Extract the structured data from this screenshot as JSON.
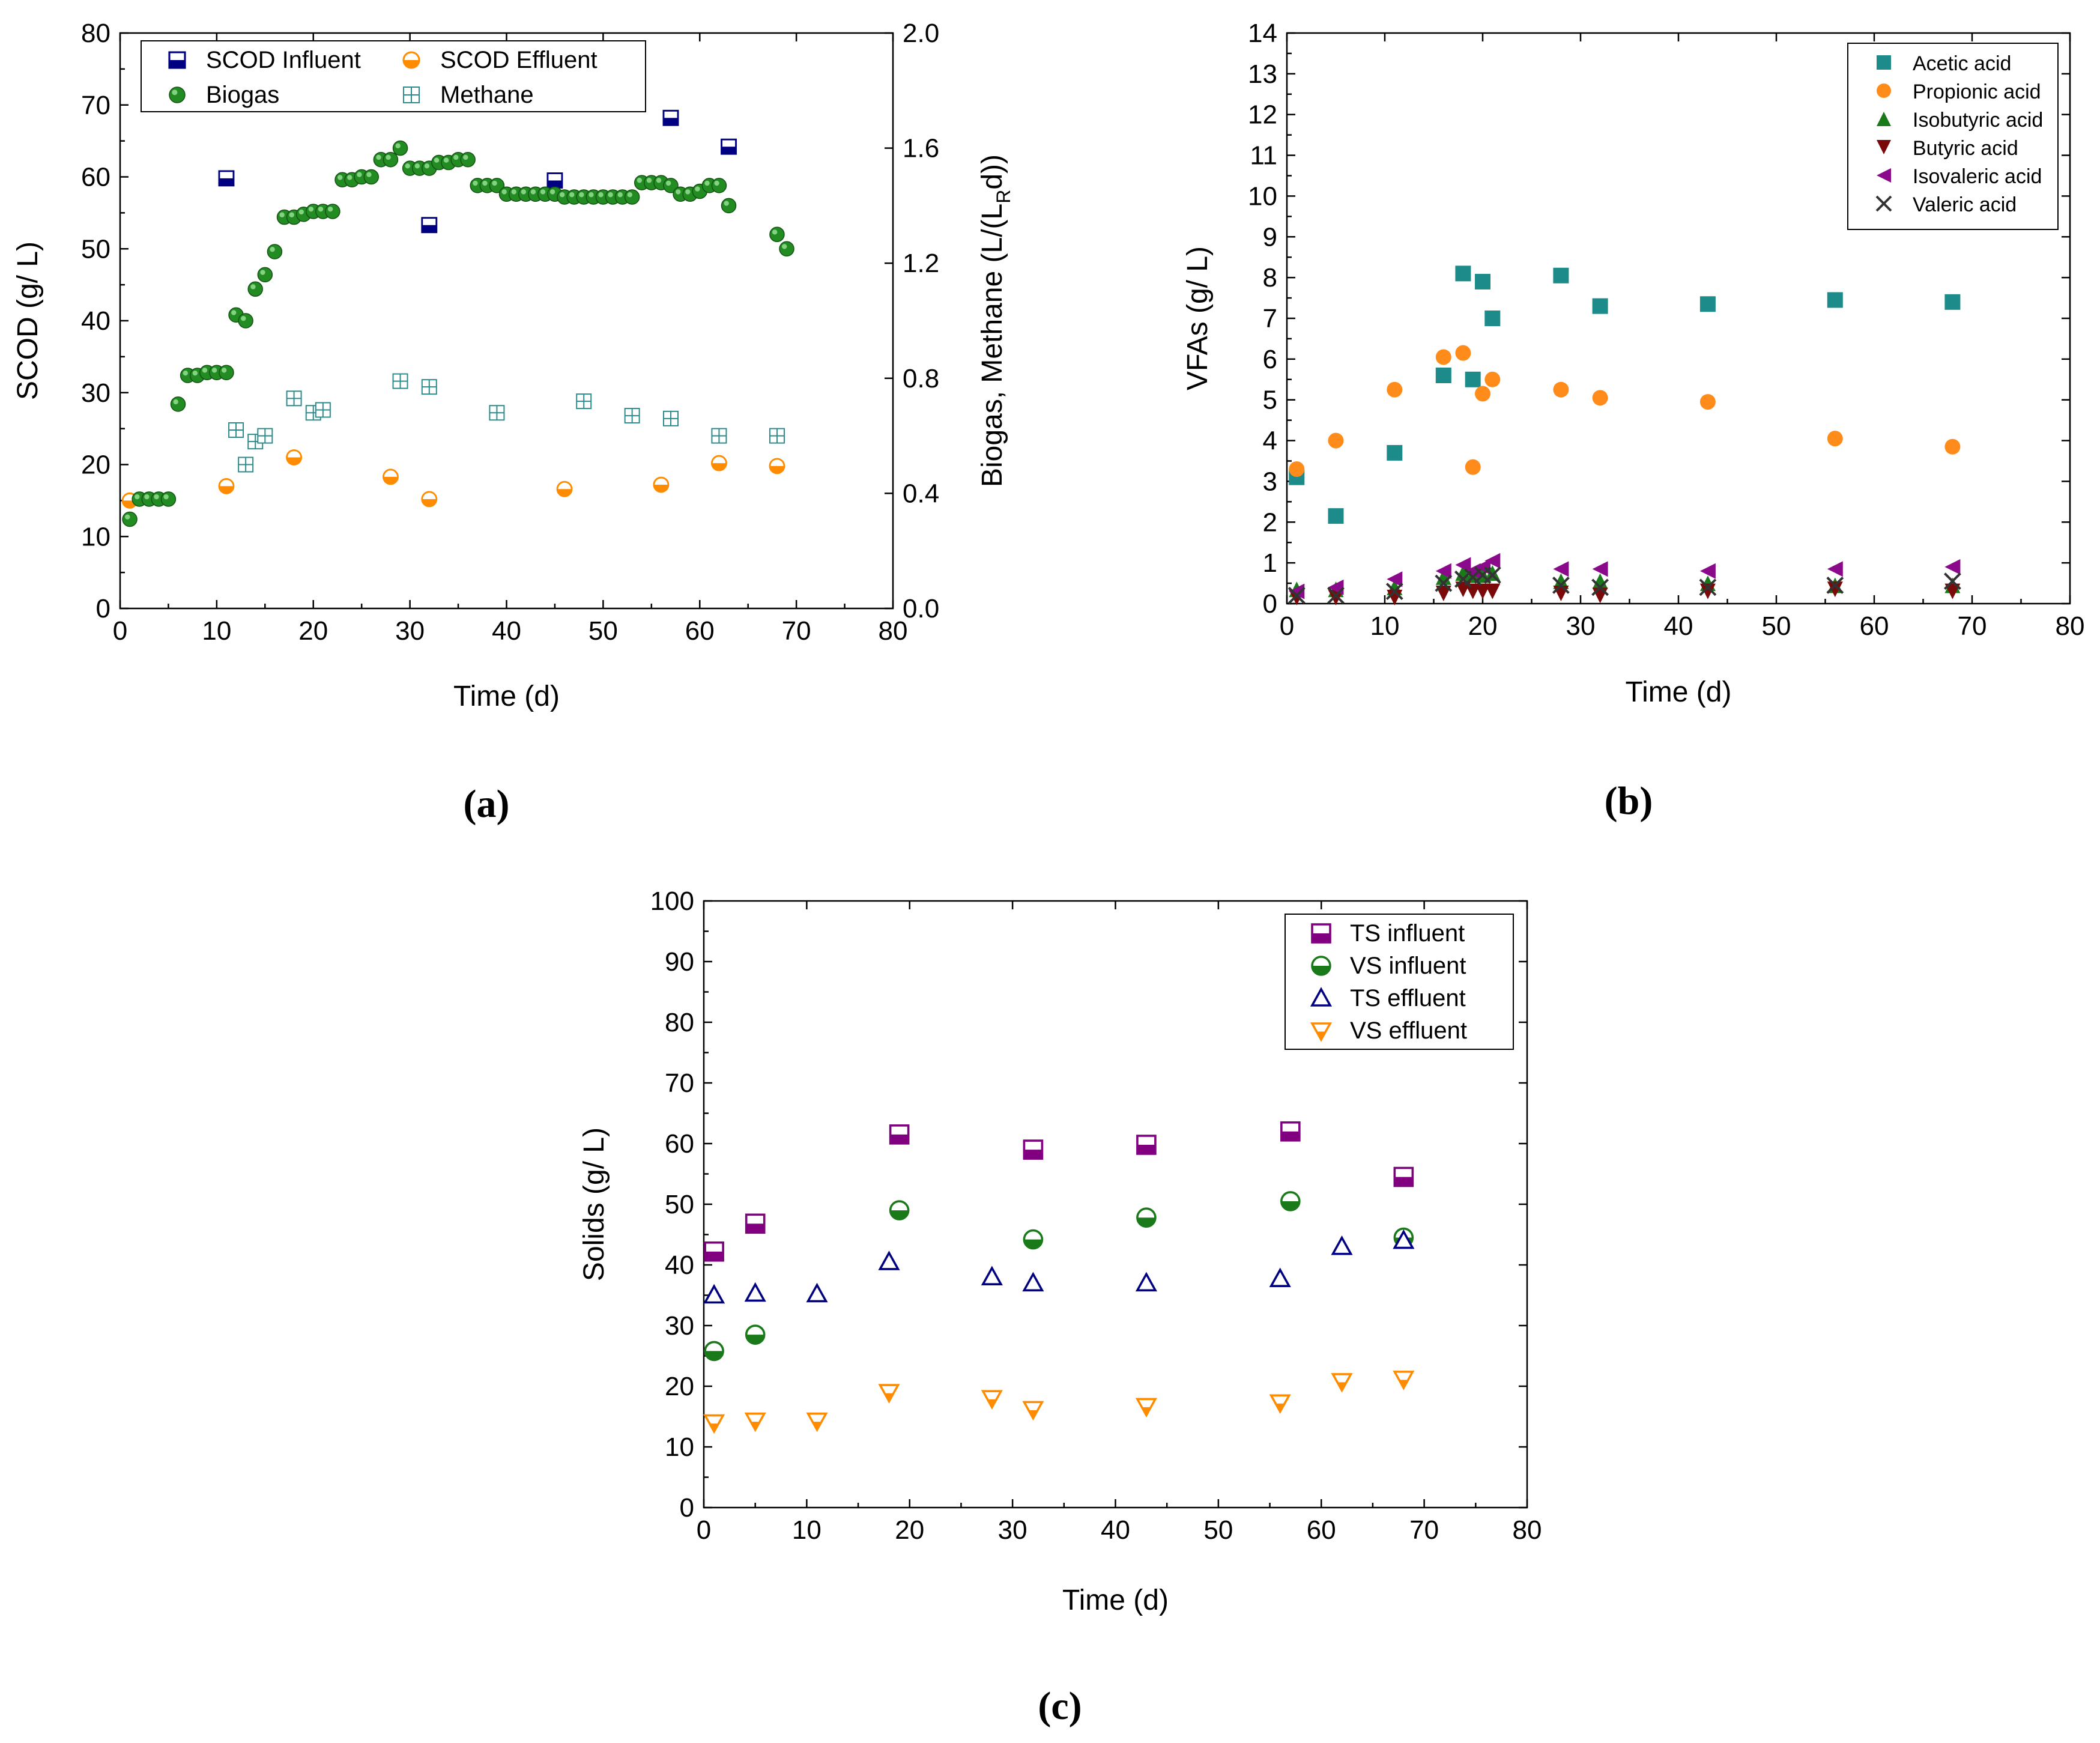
{
  "chart_data": [
    {
      "id": "a",
      "type": "scatter",
      "panel_label": "(a)",
      "xlabel": "Time (d)",
      "ylabel": "SCOD (g/ L)",
      "y2label": "Biogas, Methane (L/(L",
      "y2label_sub": "R",
      "y2label_end": "d))",
      "xlim": [
        0,
        80
      ],
      "ylim": [
        0,
        80
      ],
      "y2lim": [
        0,
        2.0
      ],
      "xticks": [
        "0",
        "10",
        "20",
        "30",
        "40",
        "50",
        "60",
        "70",
        "80"
      ],
      "yticks": [
        "0",
        "10",
        "20",
        "30",
        "40",
        "50",
        "60",
        "70",
        "80"
      ],
      "y2ticks": [
        "0.0",
        "0.4",
        "0.8",
        "1.2",
        "1.6",
        "2.0"
      ],
      "legend_position": "top",
      "series": [
        {
          "name": "SCOD Influent",
          "axis": "left",
          "marker": "half-square",
          "color": "#000080",
          "x": [
            11,
            32,
            45,
            57,
            63
          ],
          "y": [
            59.8,
            53.3,
            59.5,
            68.2,
            64.2
          ]
        },
        {
          "name": "SCOD Effluent",
          "axis": "left",
          "marker": "half-circle",
          "color": "#FF8C00",
          "x": [
            1,
            11,
            18,
            28,
            32,
            46,
            56,
            62,
            68
          ],
          "y": [
            15.0,
            17.0,
            21.0,
            18.3,
            15.2,
            16.6,
            17.2,
            20.2,
            19.8
          ]
        },
        {
          "name": "Biogas",
          "axis": "right",
          "marker": "ball",
          "color": "#228B22",
          "x": [
            1,
            2,
            3,
            4,
            5,
            6,
            7,
            8,
            9,
            10,
            11,
            12,
            13,
            14,
            15,
            16,
            17,
            18,
            19,
            20,
            21,
            22,
            23,
            24,
            25,
            26,
            27,
            28,
            29,
            30,
            31,
            32,
            33,
            34,
            35,
            36,
            37,
            38,
            39,
            40,
            41,
            42,
            43,
            44,
            45,
            46,
            47,
            48,
            49,
            50,
            51,
            52,
            53,
            54,
            55,
            56,
            57,
            58,
            59,
            60,
            61,
            62,
            63,
            68,
            69
          ],
          "y": [
            0.31,
            0.38,
            0.38,
            0.38,
            0.38,
            0.71,
            0.81,
            0.81,
            0.82,
            0.82,
            0.82,
            1.02,
            1.0,
            1.11,
            1.16,
            1.24,
            1.36,
            1.36,
            1.37,
            1.38,
            1.38,
            1.38,
            1.49,
            1.49,
            1.5,
            1.5,
            1.56,
            1.56,
            1.6,
            1.53,
            1.53,
            1.53,
            1.55,
            1.55,
            1.56,
            1.56,
            1.47,
            1.47,
            1.47,
            1.44,
            1.44,
            1.44,
            1.44,
            1.44,
            1.44,
            1.43,
            1.43,
            1.43,
            1.43,
            1.43,
            1.43,
            1.43,
            1.43,
            1.48,
            1.48,
            1.48,
            1.47,
            1.44,
            1.44,
            1.45,
            1.47,
            1.47,
            1.4,
            1.3,
            1.25
          ]
        },
        {
          "name": "Methane",
          "axis": "right",
          "marker": "grid-square",
          "color": "#2E8B8B",
          "x": [
            12,
            13,
            14,
            15,
            18,
            20,
            21,
            29,
            32,
            39,
            48,
            53,
            57,
            62,
            68
          ],
          "y": [
            0.62,
            0.5,
            0.58,
            0.6,
            0.73,
            0.68,
            0.69,
            0.79,
            0.77,
            0.68,
            0.72,
            0.67,
            0.66,
            0.6,
            0.6
          ]
        }
      ]
    },
    {
      "id": "b",
      "type": "scatter",
      "panel_label": "(b)",
      "xlabel": "Time (d)",
      "ylabel": "VFAs (g/ L)",
      "xlim": [
        0,
        80
      ],
      "ylim": [
        0,
        14
      ],
      "xticks": [
        "0",
        "10",
        "20",
        "30",
        "40",
        "50",
        "60",
        "70",
        "80"
      ],
      "yticks": [
        "0",
        "1",
        "2",
        "3",
        "4",
        "5",
        "6",
        "7",
        "8",
        "9",
        "10",
        "11",
        "12",
        "13",
        "14"
      ],
      "legend_position": "top-right",
      "series": [
        {
          "name": "Acetic acid",
          "marker": "square",
          "color": "#1E8B8B",
          "x": [
            1,
            5,
            11,
            16,
            18,
            19,
            20,
            21,
            28,
            32,
            43,
            56,
            68
          ],
          "y": [
            3.1,
            2.15,
            3.7,
            5.6,
            8.1,
            5.5,
            7.9,
            7.0,
            8.05,
            7.3,
            7.35,
            7.45,
            7.4
          ]
        },
        {
          "name": "Propionic acid",
          "marker": "circle",
          "color": "#FF8C1A",
          "x": [
            1,
            5,
            11,
            16,
            18,
            19,
            20,
            21,
            28,
            32,
            43,
            56,
            68
          ],
          "y": [
            3.3,
            4.0,
            5.25,
            6.05,
            6.15,
            3.35,
            5.15,
            5.5,
            5.25,
            5.05,
            4.95,
            4.05,
            3.85
          ]
        },
        {
          "name": "Isobutyric acid",
          "marker": "triangle-up",
          "color": "#1A7A1A",
          "x": [
            1,
            5,
            11,
            16,
            18,
            19,
            20,
            21,
            28,
            32,
            43,
            56,
            68
          ],
          "y": [
            0.35,
            0.35,
            0.4,
            0.65,
            0.75,
            0.7,
            0.7,
            0.75,
            0.55,
            0.55,
            0.5,
            0.45,
            0.45
          ]
        },
        {
          "name": "Butyric acid",
          "marker": "triangle-down",
          "color": "#7A0A0A",
          "x": [
            1,
            5,
            11,
            16,
            18,
            19,
            20,
            21,
            28,
            32,
            43,
            56,
            68
          ],
          "y": [
            0.15,
            0.15,
            0.15,
            0.25,
            0.35,
            0.3,
            0.3,
            0.3,
            0.25,
            0.2,
            0.3,
            0.35,
            0.3
          ]
        },
        {
          "name": "Isovaleric acid",
          "marker": "triangle-left",
          "color": "#8B0A8B",
          "x": [
            1,
            5,
            11,
            16,
            18,
            19,
            20,
            21,
            28,
            32,
            43,
            56,
            68
          ],
          "y": [
            0.3,
            0.4,
            0.6,
            0.8,
            0.95,
            0.8,
            0.9,
            1.05,
            0.85,
            0.85,
            0.8,
            0.85,
            0.9
          ]
        },
        {
          "name": "Valeric acid",
          "marker": "x",
          "color": "#333333",
          "x": [
            1,
            5,
            11,
            16,
            18,
            19,
            20,
            21,
            28,
            32,
            43,
            56,
            68
          ],
          "y": [
            0.2,
            0.2,
            0.3,
            0.5,
            0.6,
            0.65,
            0.7,
            0.7,
            0.45,
            0.4,
            0.4,
            0.45,
            0.55
          ]
        }
      ]
    },
    {
      "id": "c",
      "type": "scatter",
      "panel_label": "(c)",
      "xlabel": "Time (d)",
      "ylabel": "Solids (g/ L)",
      "xlim": [
        0,
        80
      ],
      "ylim": [
        0,
        100
      ],
      "xticks": [
        "0",
        "10",
        "20",
        "30",
        "40",
        "50",
        "60",
        "70",
        "80"
      ],
      "yticks": [
        "0",
        "10",
        "20",
        "30",
        "40",
        "50",
        "60",
        "70",
        "80",
        "90",
        "100"
      ],
      "legend_position": "top-right",
      "series": [
        {
          "name": "TS influent",
          "marker": "half-square",
          "color": "#800080",
          "x": [
            1,
            5,
            19,
            32,
            43,
            57,
            68
          ],
          "y": [
            42.2,
            46.8,
            61.5,
            59.0,
            59.8,
            62.0,
            54.5
          ]
        },
        {
          "name": "VS influent",
          "marker": "half-circle",
          "color": "#1A7A1A",
          "x": [
            1,
            5,
            19,
            32,
            43,
            57,
            68
          ],
          "y": [
            25.8,
            28.5,
            49.0,
            44.2,
            47.8,
            50.5,
            44.5
          ]
        },
        {
          "name": "TS effluent",
          "marker": "open-triangle-up",
          "color": "#000080",
          "x": [
            1,
            5,
            11,
            18,
            28,
            32,
            43,
            56,
            62,
            68
          ],
          "y": [
            35.0,
            35.3,
            35.2,
            40.5,
            38.0,
            37.0,
            37.0,
            37.7,
            43.0,
            44.0
          ]
        },
        {
          "name": "VS effluent",
          "marker": "half-triangle-down",
          "color": "#FF8C00",
          "x": [
            1,
            5,
            11,
            18,
            28,
            32,
            43,
            56,
            62,
            68
          ],
          "y": [
            14.0,
            14.3,
            14.3,
            19.0,
            18.0,
            16.2,
            16.7,
            17.3,
            20.8,
            21.2
          ]
        }
      ]
    }
  ]
}
